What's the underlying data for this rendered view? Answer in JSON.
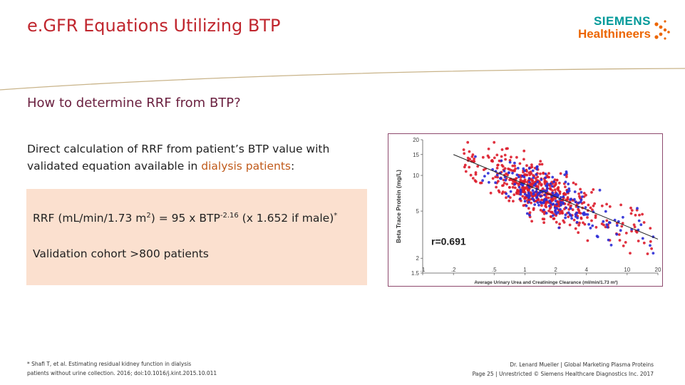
{
  "slide": {
    "title": "e.GFR Equations Utilizing BTP",
    "subtitle": "How to determine RRF from BTP?"
  },
  "logo": {
    "line1": "SIEMENS",
    "line2": "Healthineers",
    "colors": {
      "teal": "#009999",
      "orange": "#ec6602"
    }
  },
  "body": {
    "intro_part1": "Direct calculation of RRF from patient’s BTP value with validated equation available in ",
    "intro_highlight": "dialysis patients",
    "intro_part2": ":"
  },
  "box": {
    "formula_prefix": "RRF (mL/min/1.73 m",
    "formula_exp1": "2",
    "formula_mid": ") = 95 x BTP",
    "formula_exp2": "-2.16",
    "formula_suffix": " (x 1.652 if male)",
    "formula_mark": "*",
    "validation": "Validation cohort >800 patients"
  },
  "footnote": {
    "line1": "* Shafi T, et al. Estimating residual kidney function in dialysis",
    "line2": "patients without urine collection. 2016; doi:10.1016/j.kint.2015.10.011"
  },
  "credit": {
    "line1": "Dr. Lenard Mueller | Global Marketing Plasma Proteins",
    "line2": "Page 25 | Unrestricted © Siemens Healthcare Diagnostics Inc. 2017"
  },
  "colors": {
    "title": "#c0262e",
    "subtitle": "#6b2140",
    "box_bg": "#fbe0cf",
    "series_red": "#dd1c2b",
    "series_blue": "#2b2bd6"
  },
  "chart_data": {
    "type": "scatter",
    "xlabel": "Average Urinary Urea and Creatininge Clearance (ml/min/1.73 m²)",
    "ylabel": "Beta Trace Protein (mg/L)",
    "x_scale": "log",
    "y_scale": "log",
    "x_ticks": [
      ".1",
      ".2",
      ".5",
      "1",
      "2",
      "4",
      "10",
      "20"
    ],
    "x_tick_values": [
      0.1,
      0.2,
      0.5,
      1,
      2,
      4,
      10,
      20
    ],
    "y_ticks": [
      "20",
      "15",
      "10",
      "5",
      "2",
      "1.5"
    ],
    "y_tick_values": [
      20,
      15,
      10,
      5,
      2,
      1.5
    ],
    "xlim": [
      0.1,
      20
    ],
    "ylim": [
      1.5,
      20
    ],
    "annotation": "r=0.691",
    "fit_line": {
      "x": [
        0.2,
        20
      ],
      "y": [
        15,
        2.9
      ]
    },
    "series": [
      {
        "color": "#dd1c2b",
        "n_points": 560
      },
      {
        "color": "#2b2bd6",
        "n_points": 210
      }
    ]
  }
}
